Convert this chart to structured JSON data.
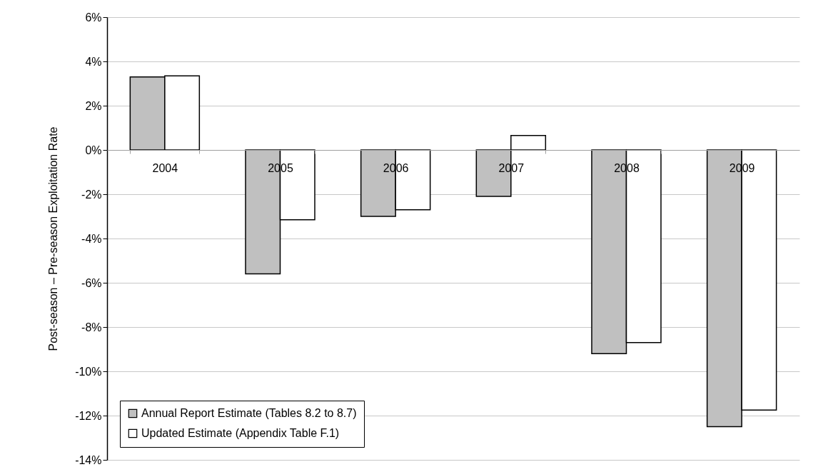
{
  "chart_data": {
    "type": "bar",
    "ylabel": "Post-season – Pre-season Exploitation Rate",
    "categories": [
      "2004",
      "2005",
      "2006",
      "2007",
      "2008",
      "2009"
    ],
    "series": [
      {
        "name": "Annual Report Estimate (Tables 8.2 to 8.7)",
        "color": "#c0c0c0",
        "values": [
          3.3,
          -5.6,
          -3.0,
          -2.1,
          -9.2,
          -12.5
        ]
      },
      {
        "name": "Updated Estimate (Appendix Table F.1)",
        "color": "#ffffff",
        "values": [
          3.35,
          -3.15,
          -2.7,
          0.65,
          -8.7,
          -11.75
        ]
      }
    ],
    "ylim": [
      -14,
      6
    ],
    "yticks": [
      {
        "value": -14,
        "label": "-14%"
      },
      {
        "value": -12,
        "label": "-12%"
      },
      {
        "value": -10,
        "label": "-10%"
      },
      {
        "value": -8,
        "label": "-8%"
      },
      {
        "value": -6,
        "label": "-6%"
      },
      {
        "value": -4,
        "label": "-4%"
      },
      {
        "value": -2,
        "label": "-2%"
      },
      {
        "value": 0,
        "label": "0%"
      },
      {
        "value": 2,
        "label": "2%"
      },
      {
        "value": 4,
        "label": "4%"
      },
      {
        "value": 6,
        "label": "6%"
      }
    ],
    "grid": "y",
    "legend": "bottom left"
  }
}
